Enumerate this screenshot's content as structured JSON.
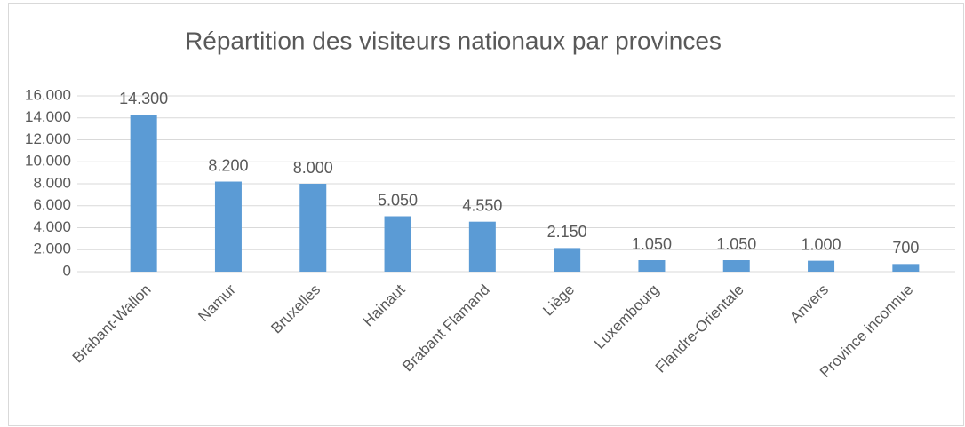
{
  "chart_data": {
    "type": "bar",
    "title": "Répartition des visiteurs nationaux par provinces",
    "categories": [
      "Brabant-Wallon",
      "Namur",
      "Bruxelles",
      "Hainaut",
      "Brabant Flamand",
      "Liège",
      "Luxembourg",
      "Flandre-Orientale",
      "Anvers",
      "Province inconnue"
    ],
    "values": [
      14300,
      8200,
      8000,
      5050,
      4550,
      2150,
      1050,
      1050,
      1000,
      700
    ],
    "value_labels": [
      "14.300",
      "8.200",
      "8.000",
      "5.050",
      "4.550",
      "2.150",
      "1.050",
      "1.050",
      "1.000",
      "700"
    ],
    "color": "#5b9bd5",
    "ylim": [
      0,
      16000
    ],
    "yticks": [
      0,
      {
        "value": 2000,
        "label": "2.000"
      },
      {
        "value": 4000,
        "label": "4.000"
      },
      {
        "value": 6000,
        "label": "6.000"
      },
      {
        "value": 8000,
        "label": "8.000"
      },
      {
        "value": 10000,
        "label": "10.000"
      },
      {
        "value": 12000,
        "label": "12.000"
      },
      {
        "value": 14000,
        "label": "14.000"
      },
      {
        "value": 16000,
        "label": "16.000"
      }
    ],
    "grid": true
  }
}
